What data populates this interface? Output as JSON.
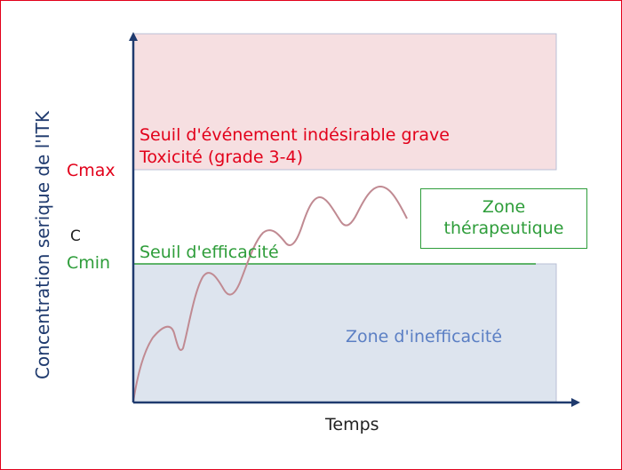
{
  "y_axis_label": "Concentration serique de l'ITK",
  "x_axis_label": "Temps",
  "cmax_label": "Cmax",
  "c_label": "C",
  "cmin_label": "Cmin",
  "toxic_zone": {
    "line1": "Seuil d'événement indésirable grave",
    "line2": "Toxicité (grade 3-4)"
  },
  "efficacy_threshold_label": "Seuil d'efficacité",
  "therapeutic_zone": {
    "line1": "Zone",
    "line2": "thérapeutique"
  },
  "ineffective_zone_label": "Zone d'inefficacité",
  "colors": {
    "toxic_fill": "#f6dfe1",
    "ineffective_fill": "#dde4ee",
    "curve": "#c08a92",
    "axis": "#1f3a6e",
    "red": "#e2001a",
    "green": "#2e9d3a",
    "blue": "#5b7fc4"
  }
}
